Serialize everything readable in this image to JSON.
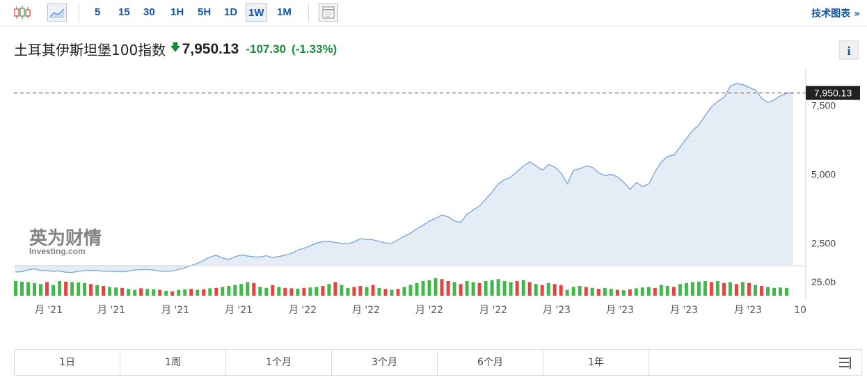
{
  "toolbar": {
    "chart_icons": [
      "candlestick-icon",
      "area-chart-icon",
      "settings-table-icon"
    ],
    "intervals": [
      {
        "label": "5",
        "active": false
      },
      {
        "label": "15",
        "active": false
      },
      {
        "label": "30",
        "active": false
      },
      {
        "label": "1H",
        "active": false
      },
      {
        "label": "5H",
        "active": false
      },
      {
        "label": "1D",
        "active": false
      },
      {
        "label": "1W",
        "active": true
      },
      {
        "label": "1M",
        "active": false
      }
    ],
    "tech_chart_link": "技术图表 »"
  },
  "quote": {
    "name": "土耳其伊斯坦堡100指数",
    "direction_icon": "down-arrow-icon",
    "price": "7,950.13",
    "change": "-107.30",
    "change_pct": "(-1.33%)",
    "info_label": "i"
  },
  "colors": {
    "line": "#7ea9d6",
    "fill": "#e4edf6",
    "last_price_line": "#c0504d",
    "up_volume": "#42b84a",
    "down_volume": "#e64343",
    "positive": "#1a8b3a",
    "label_bg": "#222222"
  },
  "watermark": {
    "brand_cn": "英为财情",
    "brand_en": "Investing.com"
  },
  "chart_data": {
    "type": "area",
    "y_ticks": [
      2500,
      5000,
      7500
    ],
    "y_tick_labels": [
      "2,500",
      "5,000",
      "7,500"
    ],
    "ylim": [
      1700,
      8800
    ],
    "last_value": 7950.13,
    "last_value_label": "7,950.13",
    "x_tick_labels": [
      "月 '21",
      "月 '21",
      "月 '21",
      "月 '21",
      "月 '22",
      "月 '22",
      "月 '22",
      "月 '22",
      "月 '23",
      "月 '23",
      "月 '23",
      "月 '23",
      "10"
    ],
    "values": [
      1450,
      1460,
      1520,
      1560,
      1510,
      1500,
      1470,
      1490,
      1440,
      1430,
      1470,
      1500,
      1510,
      1500,
      1480,
      1470,
      1470,
      1460,
      1480,
      1520,
      1530,
      1540,
      1520,
      1480,
      1470,
      1480,
      1540,
      1600,
      1680,
      1760,
      1870,
      1990,
      2060,
      1960,
      1900,
      2000,
      2070,
      2030,
      2000,
      1990,
      2040,
      1970,
      2010,
      2060,
      2120,
      2240,
      2310,
      2400,
      2500,
      2550,
      2560,
      2520,
      2490,
      2480,
      2540,
      2660,
      2630,
      2620,
      2560,
      2500,
      2490,
      2620,
      2740,
      2860,
      3020,
      3150,
      3300,
      3400,
      3520,
      3450,
      3300,
      3250,
      3550,
      3700,
      3850,
      4100,
      4350,
      4650,
      4800,
      4900,
      5100,
      5300,
      5450,
      5300,
      5150,
      5350,
      5250,
      5050,
      4650,
      5150,
      5200,
      5300,
      5250,
      5050,
      4950,
      5000,
      4900,
      4700,
      4450,
      4700,
      4550,
      4650,
      5100,
      5450,
      5650,
      5700,
      6000,
      6300,
      6600,
      6800,
      7150,
      7450,
      7650,
      7800,
      8200,
      8300,
      8250,
      8150,
      8050,
      7750,
      7600,
      7700,
      7850,
      7950,
      7950.13
    ],
    "volume_label": "25.0b",
    "volume": [
      {
        "v": 0.75,
        "up": true
      },
      {
        "v": 0.72,
        "up": true
      },
      {
        "v": 0.7,
        "up": true
      },
      {
        "v": 0.65,
        "up": true
      },
      {
        "v": 0.6,
        "up": true
      },
      {
        "v": 0.7,
        "up": false
      },
      {
        "v": 0.55,
        "up": true
      },
      {
        "v": 0.75,
        "up": true
      },
      {
        "v": 0.72,
        "up": false
      },
      {
        "v": 0.7,
        "up": true
      },
      {
        "v": 0.68,
        "up": true
      },
      {
        "v": 0.65,
        "up": true
      },
      {
        "v": 0.6,
        "up": false
      },
      {
        "v": 0.55,
        "up": true
      },
      {
        "v": 0.5,
        "up": false
      },
      {
        "v": 0.45,
        "up": true
      },
      {
        "v": 0.42,
        "up": true
      },
      {
        "v": 0.4,
        "up": false
      },
      {
        "v": 0.35,
        "up": true
      },
      {
        "v": 0.3,
        "up": true
      },
      {
        "v": 0.38,
        "up": false
      },
      {
        "v": 0.35,
        "up": true
      },
      {
        "v": 0.33,
        "up": true
      },
      {
        "v": 0.3,
        "up": false
      },
      {
        "v": 0.25,
        "up": true
      },
      {
        "v": 0.22,
        "up": false
      },
      {
        "v": 0.3,
        "up": true
      },
      {
        "v": 0.32,
        "up": true
      },
      {
        "v": 0.35,
        "up": false
      },
      {
        "v": 0.3,
        "up": true
      },
      {
        "v": 0.33,
        "up": false
      },
      {
        "v": 0.38,
        "up": true
      },
      {
        "v": 0.4,
        "up": false
      },
      {
        "v": 0.45,
        "up": true
      },
      {
        "v": 0.5,
        "up": true
      },
      {
        "v": 0.55,
        "up": true
      },
      {
        "v": 0.6,
        "up": true
      },
      {
        "v": 0.7,
        "up": true
      },
      {
        "v": 0.65,
        "up": false
      },
      {
        "v": 0.45,
        "up": true
      },
      {
        "v": 0.4,
        "up": true
      },
      {
        "v": 0.55,
        "up": false
      },
      {
        "v": 0.45,
        "up": true
      },
      {
        "v": 0.4,
        "up": false
      },
      {
        "v": 0.38,
        "up": false
      },
      {
        "v": 0.36,
        "up": true
      },
      {
        "v": 0.4,
        "up": false
      },
      {
        "v": 0.42,
        "up": true
      },
      {
        "v": 0.45,
        "up": true
      },
      {
        "v": 0.5,
        "up": false
      },
      {
        "v": 0.6,
        "up": true
      },
      {
        "v": 0.7,
        "up": false
      },
      {
        "v": 0.55,
        "up": true
      },
      {
        "v": 0.4,
        "up": true
      },
      {
        "v": 0.45,
        "up": false
      },
      {
        "v": 0.5,
        "up": false
      },
      {
        "v": 0.45,
        "up": true
      },
      {
        "v": 0.55,
        "up": false
      },
      {
        "v": 0.4,
        "up": true
      },
      {
        "v": 0.35,
        "up": false
      },
      {
        "v": 0.3,
        "up": true
      },
      {
        "v": 0.35,
        "up": false
      },
      {
        "v": 0.45,
        "up": true
      },
      {
        "v": 0.55,
        "up": true
      },
      {
        "v": 0.65,
        "up": true
      },
      {
        "v": 0.75,
        "up": true
      },
      {
        "v": 0.8,
        "up": true
      },
      {
        "v": 0.9,
        "up": true
      },
      {
        "v": 0.85,
        "up": false
      },
      {
        "v": 0.75,
        "up": false
      },
      {
        "v": 0.7,
        "up": true
      },
      {
        "v": 0.6,
        "up": false
      },
      {
        "v": 0.75,
        "up": true
      },
      {
        "v": 0.7,
        "up": true
      },
      {
        "v": 0.65,
        "up": false
      },
      {
        "v": 0.75,
        "up": true
      },
      {
        "v": 0.8,
        "up": true
      },
      {
        "v": 0.85,
        "up": true
      },
      {
        "v": 0.75,
        "up": true
      },
      {
        "v": 0.7,
        "up": true
      },
      {
        "v": 0.75,
        "up": false
      },
      {
        "v": 0.8,
        "up": true
      },
      {
        "v": 0.7,
        "up": false
      },
      {
        "v": 0.6,
        "up": true
      },
      {
        "v": 0.55,
        "up": false
      },
      {
        "v": 0.65,
        "up": true
      },
      {
        "v": 0.6,
        "up": false
      },
      {
        "v": 0.55,
        "up": false
      },
      {
        "v": 0.3,
        "up": true
      },
      {
        "v": 0.45,
        "up": true
      },
      {
        "v": 0.5,
        "up": true
      },
      {
        "v": 0.45,
        "up": false
      },
      {
        "v": 0.4,
        "up": true
      },
      {
        "v": 0.35,
        "up": false
      },
      {
        "v": 0.4,
        "up": true
      },
      {
        "v": 0.35,
        "up": true
      },
      {
        "v": 0.3,
        "up": false
      },
      {
        "v": 0.28,
        "up": true
      },
      {
        "v": 0.32,
        "up": false
      },
      {
        "v": 0.38,
        "up": true
      },
      {
        "v": 0.42,
        "up": true
      },
      {
        "v": 0.45,
        "up": true
      },
      {
        "v": 0.4,
        "up": false
      },
      {
        "v": 0.55,
        "up": true
      },
      {
        "v": 0.5,
        "up": true
      },
      {
        "v": 0.45,
        "up": false
      },
      {
        "v": 0.6,
        "up": true
      },
      {
        "v": 0.65,
        "up": true
      },
      {
        "v": 0.7,
        "up": true
      },
      {
        "v": 0.72,
        "up": true
      },
      {
        "v": 0.75,
        "up": true
      },
      {
        "v": 0.7,
        "up": false
      },
      {
        "v": 0.75,
        "up": true
      },
      {
        "v": 0.65,
        "up": false
      },
      {
        "v": 0.7,
        "up": true
      },
      {
        "v": 0.6,
        "up": false
      },
      {
        "v": 0.7,
        "up": true
      },
      {
        "v": 0.65,
        "up": false
      },
      {
        "v": 0.55,
        "up": true
      },
      {
        "v": 0.5,
        "up": false
      },
      {
        "v": 0.45,
        "up": true
      },
      {
        "v": 0.4,
        "up": true
      },
      {
        "v": 0.42,
        "up": true
      },
      {
        "v": 0.4,
        "up": true
      }
    ]
  },
  "range_buttons": [
    "1日",
    "1周",
    "1个月",
    "3个月",
    "6个月",
    "1年",
    ""
  ]
}
